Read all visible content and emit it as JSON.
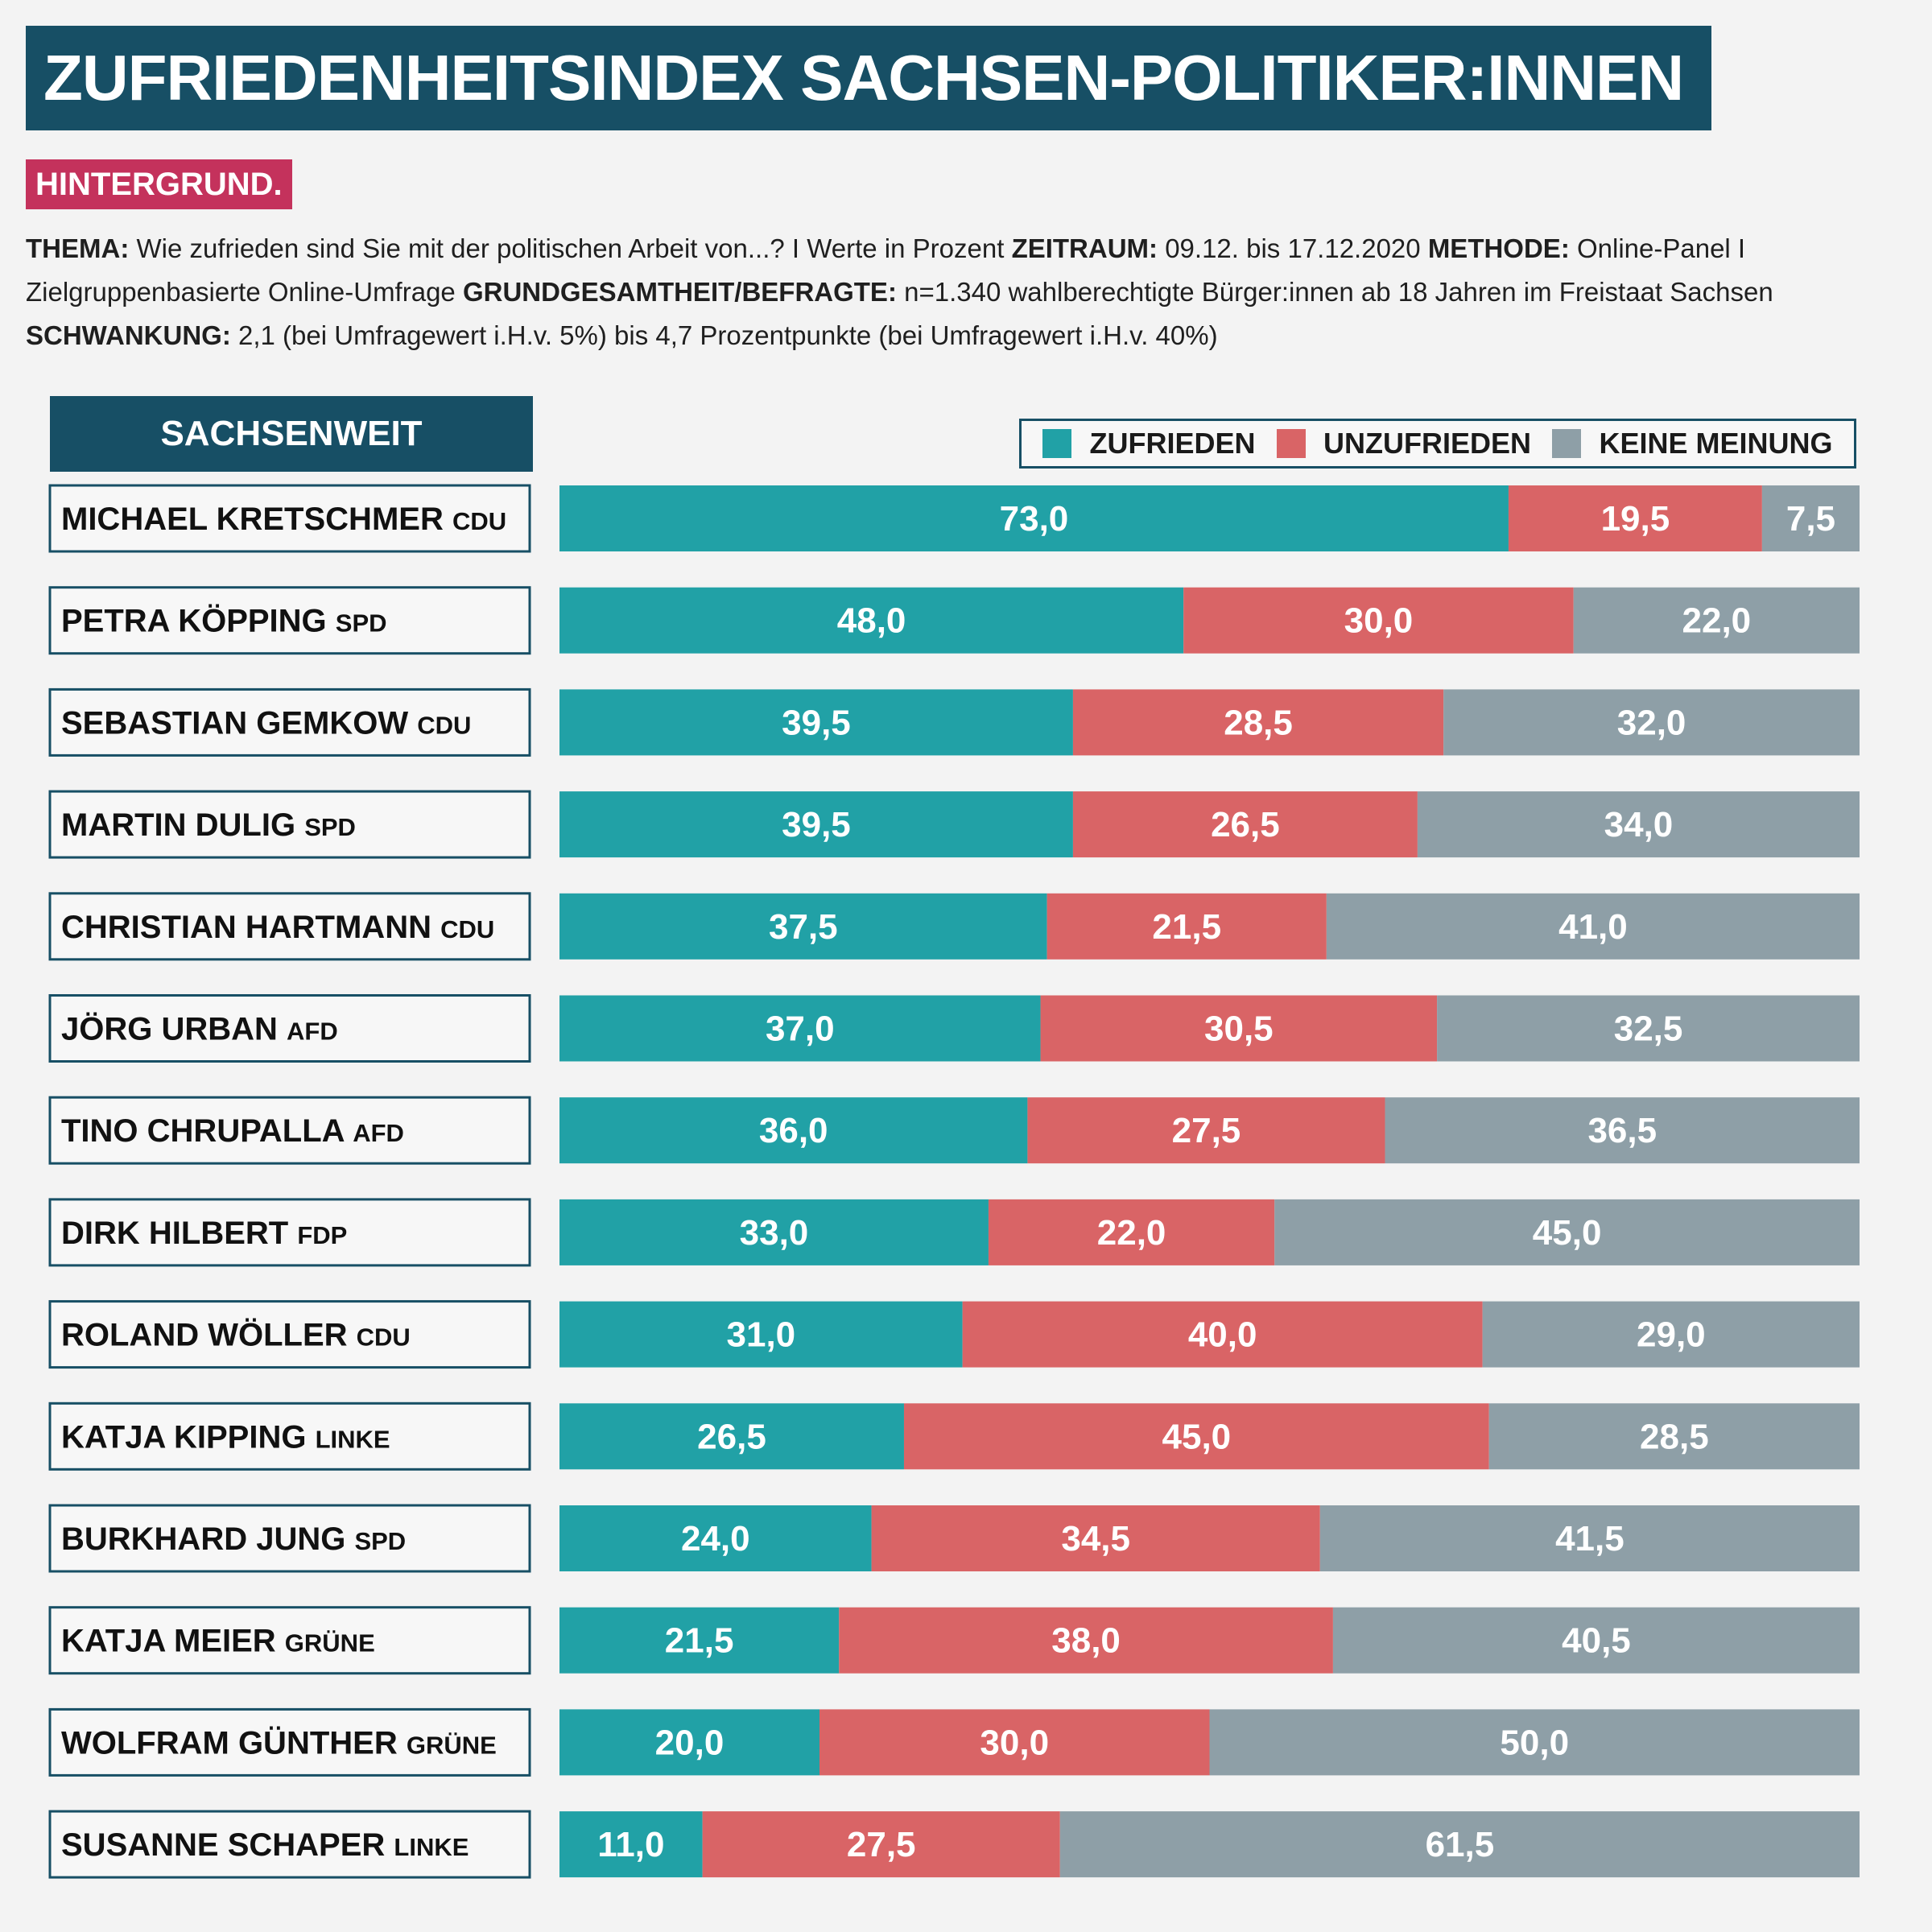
{
  "header": {
    "title": "ZUFRIEDENHEITSINDEX SACHSEN-POLITIKER:INNEN",
    "section_badge": "HINTERGRUND."
  },
  "meta": {
    "thema_label": "THEMA:",
    "thema_text": " Wie zufrieden sind Sie mit der politischen Arbeit von...? I Werte in Prozent ",
    "zeitraum_label": "ZEITRAUM:",
    "zeitraum_text": " 09.12. bis 17.12.2020 ",
    "methode_label": "METHODE:",
    "methode_text": " Online-Panel I Zielgruppenbasierte Online-Umfrage ",
    "grundgesamtheit_label": "GRUNDGESAMTHEIT/BEFRAGTE:",
    "grundgesamtheit_text": " n=1.340 wahlberechtigte Bürger:innen ab 18 Jahren im Freistaat Sachsen ",
    "schwankung_label": "SCHWANKUNG:",
    "schwankung_text": " 2,1 (bei Umfragewert i.H.v. 5%) bis 4,7 Prozentpunkte (bei Umfragewert i.H.v. 40%)"
  },
  "region_label": "SACHSENWEIT",
  "colors": {
    "zufrieden": "#21a1a6",
    "unzufrieden": "#d96466",
    "keine_meinung": "#8e9fa7",
    "header": "#174f65",
    "badge": "#c4325c"
  },
  "chart_data": {
    "type": "bar",
    "orientation": "horizontal",
    "stacked": true,
    "unit": "Prozent",
    "xlim": [
      0,
      100
    ],
    "legend": {
      "position": "top-right",
      "entries": [
        "ZUFRIEDEN",
        "UNZUFRIEDEN",
        "KEINE MEINUNG"
      ]
    },
    "categories": [
      {
        "name": "MICHAEL KRETSCHMER",
        "party": "CDU"
      },
      {
        "name": "PETRA KÖPPING",
        "party": "SPD"
      },
      {
        "name": "SEBASTIAN GEMKOW",
        "party": "CDU"
      },
      {
        "name": "MARTIN DULIG",
        "party": "SPD"
      },
      {
        "name": "CHRISTIAN HARTMANN",
        "party": "CDU"
      },
      {
        "name": "JÖRG URBAN",
        "party": "AFD"
      },
      {
        "name": "TINO CHRUPALLA",
        "party": "AFD"
      },
      {
        "name": "DIRK HILBERT",
        "party": "FDP"
      },
      {
        "name": "ROLAND WÖLLER",
        "party": "CDU"
      },
      {
        "name": "KATJA KIPPING",
        "party": "LINKE"
      },
      {
        "name": "BURKHARD JUNG",
        "party": "SPD"
      },
      {
        "name": "KATJA MEIER",
        "party": "GRÜNE"
      },
      {
        "name": "WOLFRAM GÜNTHER",
        "party": "GRÜNE"
      },
      {
        "name": "SUSANNE SCHAPER",
        "party": "LINKE"
      }
    ],
    "series": [
      {
        "name": "ZUFRIEDEN",
        "color": "#21a1a6",
        "values": [
          73.0,
          48.0,
          39.5,
          39.5,
          37.5,
          37.0,
          36.0,
          33.0,
          31.0,
          26.5,
          24.0,
          21.5,
          20.0,
          11.0
        ],
        "labels": [
          "73,0",
          "48,0",
          "39,5",
          "39,5",
          "37,5",
          "37,0",
          "36,0",
          "33,0",
          "31,0",
          "26,5",
          "24,0",
          "21,5",
          "20,0",
          "11,0"
        ]
      },
      {
        "name": "UNZUFRIEDEN",
        "color": "#d96466",
        "values": [
          19.5,
          30.0,
          28.5,
          26.5,
          21.5,
          30.5,
          27.5,
          22.0,
          40.0,
          45.0,
          34.5,
          38.0,
          30.0,
          27.5
        ],
        "labels": [
          "19,5",
          "30,0",
          "28,5",
          "26,5",
          "21,5",
          "30,5",
          "27,5",
          "22,0",
          "40,0",
          "45,0",
          "34,5",
          "38,0",
          "30,0",
          "27,5"
        ]
      },
      {
        "name": "KEINE MEINUNG",
        "color": "#8e9fa7",
        "values": [
          7.5,
          22.0,
          32.0,
          34.0,
          41.0,
          32.5,
          36.5,
          45.0,
          29.0,
          28.5,
          41.5,
          40.5,
          50.0,
          61.5
        ],
        "labels": [
          "7,5",
          "22,0",
          "32,0",
          "34,0",
          "41,0",
          "32,5",
          "36,5",
          "45,0",
          "29,0",
          "28,5",
          "41,5",
          "40,5",
          "50,0",
          "61,5"
        ]
      }
    ]
  }
}
